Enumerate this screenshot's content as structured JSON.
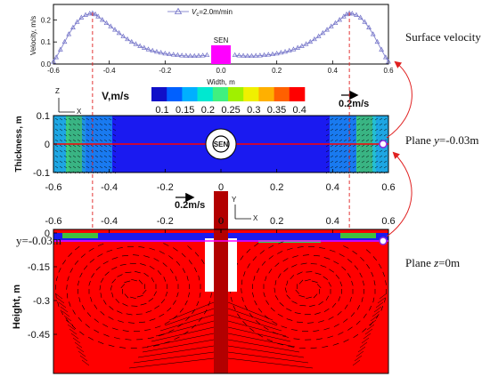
{
  "side_labels": {
    "surface": "Surface velocity",
    "plane_y_prefix": "Plane ",
    "plane_y_var": "y",
    "plane_y_value": "=-0.03m",
    "plane_z_prefix": "Plane ",
    "plane_z_var": "z",
    "plane_z_value": "=0m"
  },
  "chart_data": {
    "type": "line",
    "ylabel": "Velocity, m/s",
    "xlabel": "Width, m",
    "xlim": [
      -0.6,
      0.6
    ],
    "ylim": [
      0.0,
      0.27
    ],
    "x_ticks": [
      "-0.6",
      "-0.4",
      "-0.2",
      "0.0",
      "0.2",
      "0.4",
      "0.6"
    ],
    "y_ticks": [
      "0.0",
      "0.1",
      "0.2"
    ],
    "legend_prefix": "V",
    "legend_sub": "c",
    "legend_value": "=2.0m/min",
    "sen_label": "SEN",
    "sen_range": [
      -0.035,
      0.035
    ],
    "sen_height": 0.085,
    "x": [
      -0.6,
      -0.59,
      -0.575,
      -0.56,
      -0.545,
      -0.53,
      -0.515,
      -0.5,
      -0.485,
      -0.47,
      -0.46,
      -0.45,
      -0.44,
      -0.425,
      -0.41,
      -0.395,
      -0.38,
      -0.365,
      -0.35,
      -0.335,
      -0.32,
      -0.305,
      -0.29,
      -0.275,
      -0.26,
      -0.245,
      -0.23,
      -0.215,
      -0.2,
      -0.185,
      -0.17,
      -0.155,
      -0.14,
      -0.125,
      -0.11,
      -0.095,
      -0.08,
      -0.065,
      -0.05,
      0.05,
      0.065,
      0.08,
      0.095,
      0.11,
      0.125,
      0.14,
      0.155,
      0.17,
      0.185,
      0.2,
      0.215,
      0.23,
      0.245,
      0.26,
      0.275,
      0.29,
      0.305,
      0.32,
      0.335,
      0.35,
      0.365,
      0.38,
      0.395,
      0.41,
      0.425,
      0.44,
      0.45,
      0.46,
      0.47,
      0.485,
      0.5,
      0.515,
      0.53,
      0.545,
      0.56,
      0.575,
      0.59,
      0.6
    ],
    "y": [
      0.01,
      0.03,
      0.065,
      0.1,
      0.135,
      0.165,
      0.19,
      0.21,
      0.222,
      0.228,
      0.23,
      0.225,
      0.215,
      0.2,
      0.185,
      0.17,
      0.155,
      0.14,
      0.125,
      0.112,
      0.1,
      0.09,
      0.081,
      0.073,
      0.066,
      0.06,
      0.055,
      0.051,
      0.047,
      0.044,
      0.042,
      0.04,
      0.038,
      0.037,
      0.036,
      0.036,
      0.037,
      0.038,
      0.04,
      0.04,
      0.038,
      0.037,
      0.036,
      0.036,
      0.037,
      0.038,
      0.04,
      0.042,
      0.044,
      0.047,
      0.051,
      0.055,
      0.06,
      0.066,
      0.073,
      0.081,
      0.09,
      0.1,
      0.112,
      0.125,
      0.14,
      0.155,
      0.17,
      0.185,
      0.2,
      0.215,
      0.225,
      0.23,
      0.228,
      0.222,
      0.21,
      0.19,
      0.165,
      0.135,
      0.1,
      0.065,
      0.03,
      0.01
    ],
    "colors": {
      "line": "#8c8cd0",
      "marker": "#7070c8",
      "sen": "#ff00ff"
    }
  },
  "colorbar": {
    "title": "V,m/s",
    "labels": [
      "0.1",
      "0.15",
      "0.2",
      "0.25",
      "0.3",
      "0.35",
      "0.4"
    ],
    "colors": [
      "#1010c8",
      "#0060ff",
      "#00b0ff",
      "#00e8d0",
      "#40f080",
      "#a0f000",
      "#f0f000",
      "#ffb000",
      "#ff6000",
      "#ff0000"
    ]
  },
  "plane_y": {
    "ylabel": "Thickness, m",
    "y_ticks": [
      "0.1",
      "0",
      "-0.1"
    ],
    "x_ticks": [
      "-0.6",
      "-0.4",
      "-0.2",
      "0",
      "0.2",
      "0.4",
      "0.6"
    ],
    "sen_label": "SEN",
    "ref_label": "0.2m/s",
    "axis_z": "Z",
    "axis_x": "X",
    "colors": {
      "field": "#1a1af0",
      "wall": "#60d0e0",
      "hot": "#30b030"
    }
  },
  "plane_z": {
    "ylabel": "Height, m",
    "y_ticks": [
      "0",
      "-0.15",
      "-0.3",
      "-0.45"
    ],
    "x_ticks": [
      "-0.6",
      "-0.4",
      "-0.2",
      "0",
      "0.2",
      "0.4",
      "0.6"
    ],
    "line_label": "y=-0.03m",
    "ref_label": "0.2m/s",
    "axis_y": "Y",
    "axis_x": "X",
    "colors": {
      "field": "#ff0000",
      "top": "#1a1af0",
      "nozzle": "#ffffff"
    }
  },
  "guide_x": [
    -0.46,
    0.46
  ]
}
